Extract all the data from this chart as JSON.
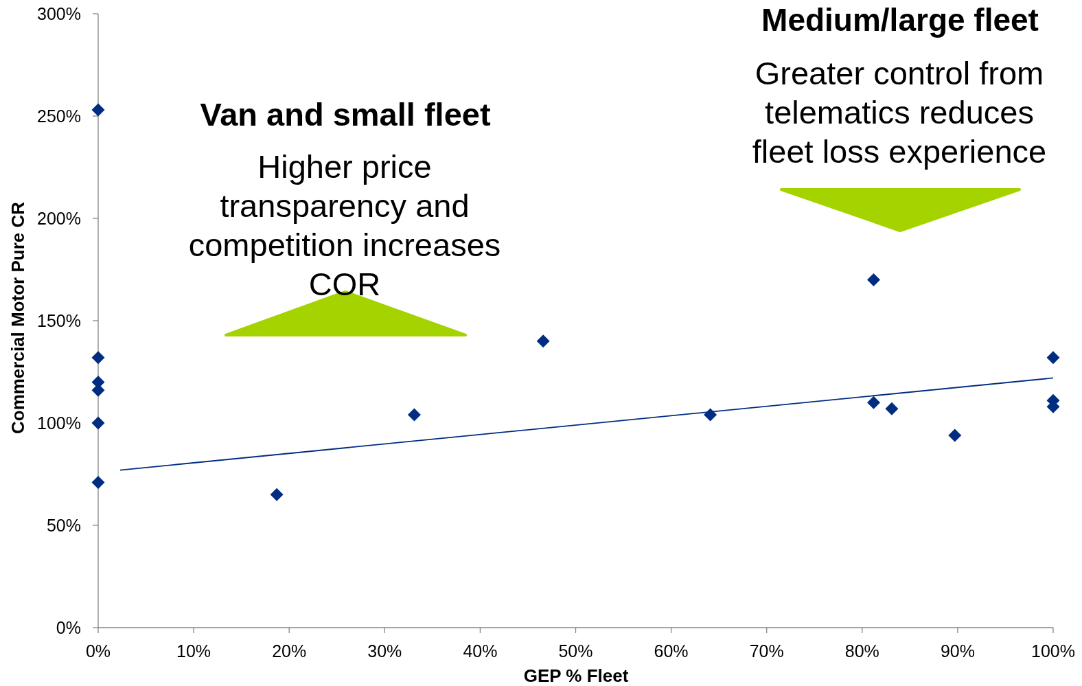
{
  "chart_data": {
    "type": "scatter",
    "xlabel": "GEP % Fleet",
    "ylabel": "Commercial Motor Pure CR",
    "xlim": [
      0,
      100
    ],
    "ylim": [
      0,
      300
    ],
    "xticks": [
      {
        "value": 0,
        "label": "0%"
      },
      {
        "value": 10,
        "label": "10%"
      },
      {
        "value": 20,
        "label": "20%"
      },
      {
        "value": 30,
        "label": "30%"
      },
      {
        "value": 40,
        "label": "40%"
      },
      {
        "value": 50,
        "label": "50%"
      },
      {
        "value": 60,
        "label": "60%"
      },
      {
        "value": 70,
        "label": "70%"
      },
      {
        "value": 80,
        "label": "80%"
      },
      {
        "value": 90,
        "label": "90%"
      },
      {
        "value": 100,
        "label": "100%"
      }
    ],
    "yticks": [
      {
        "value": 0,
        "label": "0%"
      },
      {
        "value": 50,
        "label": "50%"
      },
      {
        "value": 100,
        "label": "100%"
      },
      {
        "value": 150,
        "label": "150%"
      },
      {
        "value": 200,
        "label": "200%"
      },
      {
        "value": 250,
        "label": "250%"
      },
      {
        "value": 300,
        "label": "300%"
      }
    ],
    "marker": "diamond",
    "annotations": [
      "Van and small fleet",
      "Higher price transparency and competition increases COR",
      "Medium/large fleet",
      "Greater control from telematics reduces fleet loss experience"
    ],
    "series": [
      {
        "color": "#002d80",
        "x": [
          0,
          0,
          0,
          0,
          0,
          0,
          18.7,
          33.1,
          46.6,
          64.1,
          81.2,
          81.2,
          83.1,
          89.7,
          100,
          100,
          100
        ],
        "values": [
          253,
          132,
          120,
          116,
          100,
          71,
          65,
          104,
          140,
          104,
          170,
          110,
          107,
          94,
          132,
          111,
          108
        ]
      },
      {
        "type": "line",
        "color": "#002d80",
        "marker": "none",
        "x": [
          2.3,
          100
        ],
        "values": [
          77,
          122
        ]
      }
    ]
  }
}
